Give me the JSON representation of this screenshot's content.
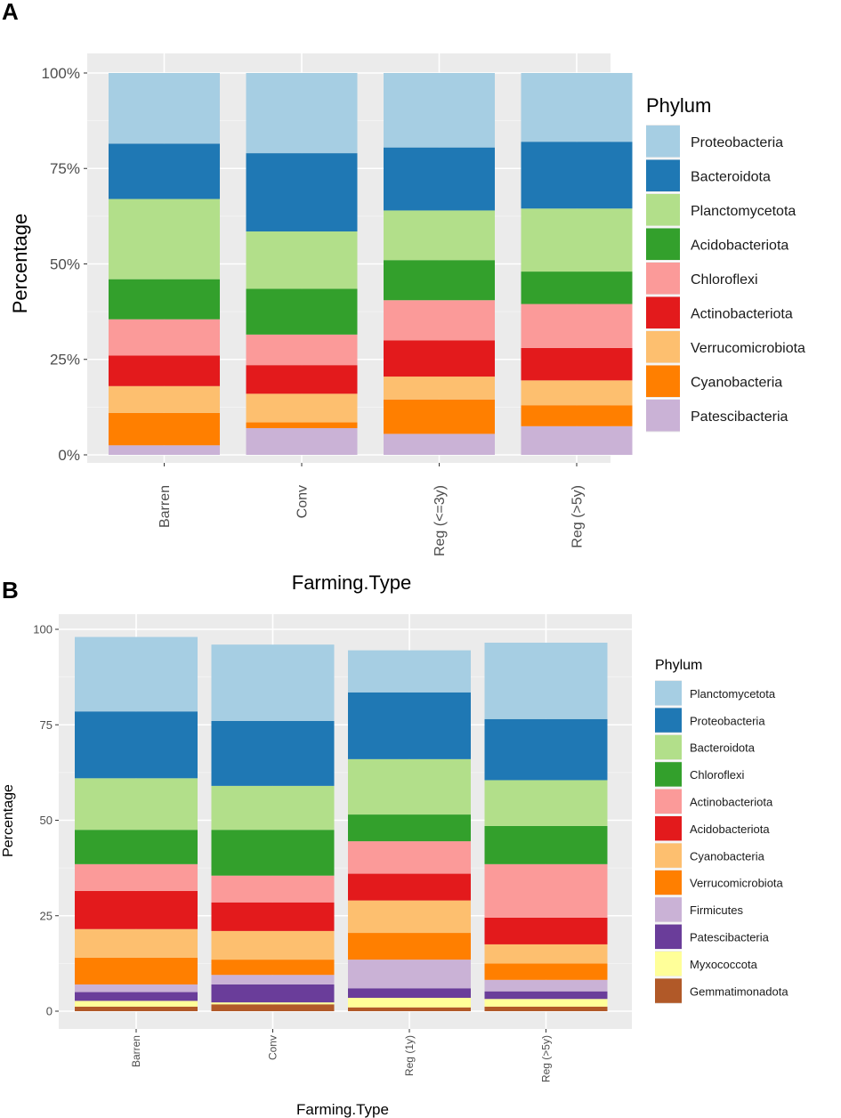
{
  "colors": {
    "panel_bg": "#ebebeb",
    "grid_major": "#ffffff",
    "tick_text": "#4d4d4d",
    "palette": [
      "#a6cee3",
      "#1f78b4",
      "#b2df8a",
      "#33a02c",
      "#fb9a99",
      "#e31a1c",
      "#fdbf6f",
      "#ff7f00",
      "#cab2d6",
      "#6a3d9a",
      "#ffff99",
      "#b15928"
    ]
  },
  "chart_data": [
    {
      "panel_label": "A",
      "type": "bar",
      "stacked": true,
      "title": "",
      "xlabel": "Farming.Type",
      "ylabel": "Percentage",
      "ylim": [
        0,
        100
      ],
      "yticks": [
        0,
        25,
        50,
        75,
        100
      ],
      "ytick_labels": [
        "0%",
        "25%",
        "50%",
        "75%",
        "100%"
      ],
      "categories": [
        "Barren",
        "Conv",
        "Reg (<=3y)",
        "Reg (>5y)"
      ],
      "legend_title": "Phylum",
      "legend_position": "right",
      "series": [
        {
          "name": "Patescibacteria",
          "color": "#cab2d6",
          "values": [
            2.5,
            7,
            5.5,
            7.5
          ]
        },
        {
          "name": "Cyanobacteria",
          "color": "#ff7f00",
          "values": [
            8.5,
            1.5,
            9,
            5.5
          ]
        },
        {
          "name": "Verrucomicrobiota",
          "color": "#fdbf6f",
          "values": [
            7,
            7.5,
            6,
            6.5
          ]
        },
        {
          "name": "Actinobacteriota",
          "color": "#e31a1c",
          "values": [
            8,
            7.5,
            9.5,
            8.5
          ]
        },
        {
          "name": "Chloroflexi",
          "color": "#fb9a99",
          "values": [
            9.5,
            8,
            10.5,
            11.5
          ]
        },
        {
          "name": "Acidobacteriota",
          "color": "#33a02c",
          "values": [
            10.5,
            12,
            10.5,
            8.5
          ]
        },
        {
          "name": "Planctomycetota",
          "color": "#b2df8a",
          "values": [
            21,
            15,
            13,
            16.5
          ]
        },
        {
          "name": "Bacteroidota",
          "color": "#1f78b4",
          "values": [
            14.5,
            20.5,
            16.5,
            17.5
          ]
        },
        {
          "name": "Proteobacteria",
          "color": "#a6cee3",
          "values": [
            18.5,
            21,
            19.5,
            18
          ]
        }
      ],
      "legend_order": [
        "Proteobacteria",
        "Bacteroidota",
        "Planctomycetota",
        "Acidobacteriota",
        "Chloroflexi",
        "Actinobacteriota",
        "Verrucomicrobiota",
        "Cyanobacteria",
        "Patescibacteria"
      ]
    },
    {
      "panel_label": "B",
      "type": "bar",
      "stacked": true,
      "title": "",
      "xlabel": "Farming.Type",
      "ylabel": "Percentage",
      "ylim": [
        0,
        100
      ],
      "yticks": [
        0,
        25,
        50,
        75,
        100
      ],
      "ytick_labels": [
        "0",
        "25",
        "50",
        "75",
        "100"
      ],
      "categories": [
        "Barren",
        "Conv",
        "Reg (1y)",
        "Reg (>5y)"
      ],
      "legend_title": "Phylum",
      "legend_position": "right",
      "series": [
        {
          "name": "Gemmatimonadota",
          "color": "#b15928",
          "values": [
            1.2,
            1.8,
            1.0,
            1.2
          ]
        },
        {
          "name": "Myxococcota",
          "color": "#ffff99",
          "values": [
            1.5,
            0.5,
            2.5,
            2.0
          ]
        },
        {
          "name": "Patescibacteria",
          "color": "#6a3d9a",
          "values": [
            2.3,
            4.7,
            2.5,
            2.0
          ]
        },
        {
          "name": "Firmicutes",
          "color": "#cab2d6",
          "values": [
            2.0,
            2.5,
            7.5,
            3.0
          ]
        },
        {
          "name": "Verrucomicrobiota",
          "color": "#ff7f00",
          "values": [
            7.0,
            4.0,
            7.0,
            4.3
          ]
        },
        {
          "name": "Cyanobacteria",
          "color": "#fdbf6f",
          "values": [
            7.5,
            7.5,
            8.5,
            5.0
          ]
        },
        {
          "name": "Acidobacteriota",
          "color": "#e31a1c",
          "values": [
            10.0,
            7.5,
            7.0,
            7.0
          ]
        },
        {
          "name": "Actinobacteriota",
          "color": "#fb9a99",
          "values": [
            7.0,
            7.0,
            8.5,
            14.0
          ]
        },
        {
          "name": "Chloroflexi",
          "color": "#33a02c",
          "values": [
            9.0,
            12.0,
            7.0,
            10.0
          ]
        },
        {
          "name": "Bacteroidota",
          "color": "#b2df8a",
          "values": [
            13.5,
            11.5,
            14.5,
            12.0
          ]
        },
        {
          "name": "Proteobacteria",
          "color": "#1f78b4",
          "values": [
            17.5,
            17.0,
            17.5,
            16.0
          ]
        },
        {
          "name": "Planctomycetota",
          "color": "#a6cee3",
          "values": [
            19.5,
            20.0,
            11.0,
            20.0
          ]
        }
      ],
      "legend_order": [
        "Planctomycetota",
        "Proteobacteria",
        "Bacteroidota",
        "Chloroflexi",
        "Actinobacteriota",
        "Acidobacteriota",
        "Cyanobacteria",
        "Verrucomicrobiota",
        "Firmicutes",
        "Patescibacteria",
        "Myxococcota",
        "Gemmatimonadota"
      ]
    }
  ]
}
